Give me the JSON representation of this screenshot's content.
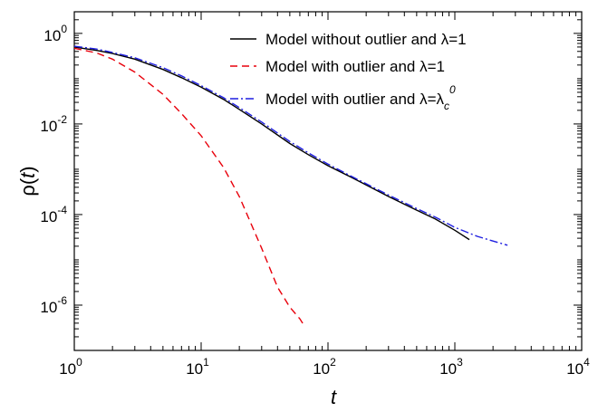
{
  "chart_data": {
    "type": "line",
    "title": "",
    "xlabel": "t",
    "ylabel_text": "ρ(",
    "ylabel_var": "t",
    "ylabel_close": ")",
    "xscale": "log",
    "yscale": "log",
    "xlim": [
      1,
      10000
    ],
    "ylim": [
      1e-07,
      3
    ],
    "grid": false,
    "legend_position": "top-right",
    "x_ticks": [
      {
        "value": 1,
        "base": "10",
        "exp": "0"
      },
      {
        "value": 10,
        "base": "10",
        "exp": "1"
      },
      {
        "value": 100,
        "base": "10",
        "exp": "2"
      },
      {
        "value": 1000,
        "base": "10",
        "exp": "3"
      },
      {
        "value": 10000,
        "base": "10",
        "exp": "4"
      }
    ],
    "y_ticks": [
      {
        "value": 1,
        "base": "10",
        "exp": "0"
      },
      {
        "value": 0.01,
        "base": "10",
        "exp": "-2"
      },
      {
        "value": 0.0001,
        "base": "10",
        "exp": "-4"
      },
      {
        "value": 1e-06,
        "base": "10",
        "exp": "-6"
      }
    ],
    "series": [
      {
        "name": "Model without outlier and λ=1",
        "color": "#000000",
        "dash": "",
        "x": [
          1,
          1.5,
          2,
          3,
          5,
          7,
          10,
          15,
          20,
          30,
          50,
          70,
          100,
          150,
          200,
          300,
          500,
          700,
          1000,
          1300
        ],
        "y": [
          0.5,
          0.42,
          0.36,
          0.27,
          0.16,
          0.105,
          0.065,
          0.035,
          0.021,
          0.01,
          0.0037,
          0.0021,
          0.0012,
          0.00068,
          0.00045,
          0.00025,
          0.000125,
          8e-05,
          4.5e-05,
          2.8e-05
        ]
      },
      {
        "name": "Model with outlier and λ=1",
        "color": "#e8000b",
        "dash": "8,5",
        "x": [
          1,
          1.5,
          2,
          3,
          5,
          7,
          10,
          15,
          20,
          30,
          40,
          50,
          60,
          65
        ],
        "y": [
          0.47,
          0.37,
          0.27,
          0.14,
          0.045,
          0.017,
          0.0055,
          0.0011,
          0.00025,
          1.8e-05,
          2.5e-06,
          9e-07,
          5e-07,
          3.5e-07
        ]
      },
      {
        "name": "Model with outlier and λ=λ",
        "name_sub": "c",
        "name_sup": "0",
        "color": "#1f1fe0",
        "dash": "9,3,2,3",
        "x": [
          1,
          1.5,
          2,
          3,
          5,
          7,
          10,
          15,
          20,
          30,
          50,
          70,
          100,
          150,
          200,
          300,
          500,
          700,
          1000,
          1500,
          2000,
          2600
        ],
        "y": [
          0.52,
          0.45,
          0.38,
          0.29,
          0.175,
          0.115,
          0.07,
          0.038,
          0.023,
          0.011,
          0.0041,
          0.0023,
          0.0013,
          0.00072,
          0.00048,
          0.00027,
          0.000135,
          8.8e-05,
          5.2e-05,
          3.3e-05,
          2.6e-05,
          2.1e-05
        ]
      }
    ]
  }
}
